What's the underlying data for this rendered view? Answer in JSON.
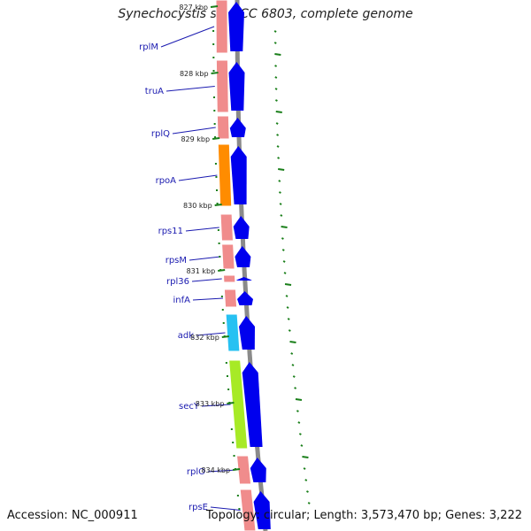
{
  "title": "Synechocystis sp. PCC 6803, complete genome",
  "accession": "Accession: NC_000911",
  "topology": "Topology: circular; Length: 3,573,470 bp; Genes: 3,222",
  "colors": {
    "gene_label": "#1b1bb0",
    "tick": "#1a7f1a",
    "backbone": "#8a8a8a",
    "strand_arrow": "#0000ee",
    "rna_gene": "#f08c8c",
    "rpoA": "#ff8c00",
    "adk": "#27c1f2",
    "secY": "#a7ea26"
  },
  "kbp_ticks": [
    "827 kbp",
    "828 kbp",
    "829 kbp",
    "830 kbp",
    "831 kbp",
    "832 kbp",
    "833 kbp",
    "834 kbp"
  ],
  "genes": [
    {
      "name": "rplM",
      "color": "rna_gene"
    },
    {
      "name": "truA",
      "color": "rna_gene"
    },
    {
      "name": "rplQ",
      "color": "rna_gene"
    },
    {
      "name": "rpoA",
      "color": "rpoA"
    },
    {
      "name": "rps11",
      "color": "rna_gene"
    },
    {
      "name": "rpsM",
      "color": "rna_gene"
    },
    {
      "name": "rpl36",
      "color": "rna_gene"
    },
    {
      "name": "infA",
      "color": "rna_gene"
    },
    {
      "name": "adk",
      "color": "adk"
    },
    {
      "name": "secY",
      "color": "secY"
    },
    {
      "name": "rplO",
      "color": "rna_gene"
    },
    {
      "name": "rpsE",
      "color": "rna_gene"
    }
  ]
}
